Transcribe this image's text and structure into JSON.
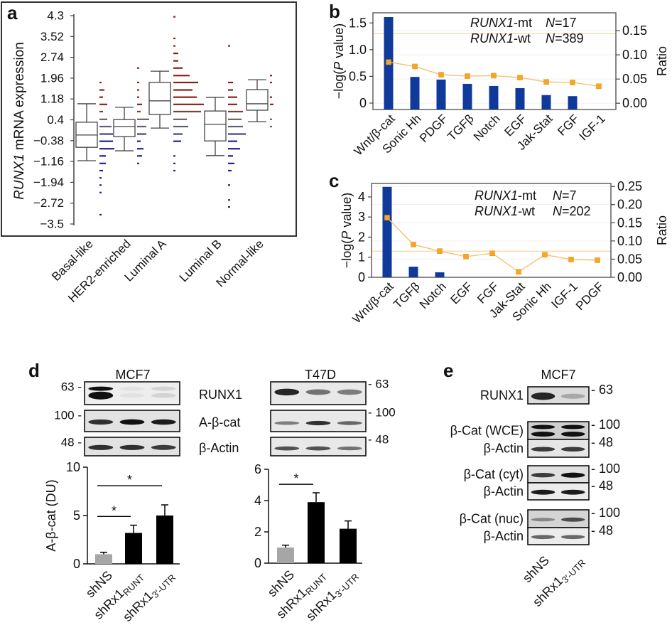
{
  "panel_labels": {
    "a": "a",
    "b": "b",
    "c": "c",
    "d": "d",
    "e": "e"
  },
  "chart_data": [
    {
      "panel": "a",
      "type": "box",
      "ylabel": [
        {
          "t": "RUNX1",
          "s": "i"
        },
        {
          "t": " mRNA expression"
        }
      ],
      "ylim": [
        -3.5,
        4.3
      ],
      "yticks": [
        {
          "v": 4.3,
          "label": "4.3"
        },
        {
          "v": 3.52,
          "label": "3.52"
        },
        {
          "v": 2.74,
          "label": "2.74"
        },
        {
          "v": 1.96,
          "label": "1.96"
        },
        {
          "v": 1.18,
          "label": "1.18"
        },
        {
          "v": 0.4,
          "label": "0.4"
        },
        {
          "v": -0.38,
          "label": "−0.38"
        },
        {
          "v": -1.16,
          "label": "−1.16"
        },
        {
          "v": -1.94,
          "label": "−1.94"
        },
        {
          "v": -2.72,
          "label": "−2.72"
        },
        {
          "v": -3.5,
          "label": "−3.5"
        }
      ],
      "categories": [
        "Basal-like",
        "HER2-enriched",
        "Luminal A",
        "Luminal B",
        "Normal-like"
      ],
      "boxes": [
        {
          "min": -1.13,
          "q1": -0.63,
          "median": -0.17,
          "q3": 0.31,
          "max": 1.0
        },
        {
          "min": -0.76,
          "q1": -0.23,
          "median": 0.15,
          "q3": 0.41,
          "max": 0.87
        },
        {
          "min": 0.09,
          "q1": 0.6,
          "median": 1.11,
          "q3": 1.8,
          "max": 2.22
        },
        {
          "min": -0.94,
          "q1": -0.39,
          "median": 0.23,
          "q3": 0.73,
          "max": 1.24
        },
        {
          "min": 0.33,
          "q1": 0.76,
          "median": 1.0,
          "q3": 1.53,
          "max": 1.9
        }
      ],
      "dot_strips": [
        [
          [
            1.8,
            1
          ],
          [
            1.52,
            3
          ],
          [
            1.25,
            2
          ],
          [
            0.98,
            5
          ],
          [
            0.71,
            2
          ],
          [
            0.42,
            5
          ],
          [
            0.15,
            8
          ],
          [
            -0.13,
            9
          ],
          [
            -0.4,
            9
          ],
          [
            -0.68,
            10
          ],
          [
            -0.95,
            4
          ],
          [
            -1.23,
            4
          ],
          [
            -1.5,
            2
          ],
          [
            -1.77,
            1
          ],
          [
            -2.04,
            1
          ],
          [
            -2.32,
            1
          ],
          [
            -3.15,
            1
          ]
        ],
        [
          [
            2.34,
            1
          ],
          [
            1.8,
            1
          ],
          [
            1.52,
            1
          ],
          [
            1.25,
            1
          ],
          [
            0.98,
            3
          ],
          [
            0.71,
            2
          ],
          [
            0.42,
            8
          ],
          [
            0.15,
            6
          ],
          [
            -0.13,
            6
          ],
          [
            -0.4,
            2
          ],
          [
            -0.68,
            4
          ],
          [
            -0.95,
            3
          ],
          [
            -1.23,
            1
          ]
        ],
        [
          [
            4.26,
            1
          ],
          [
            3.45,
            1
          ],
          [
            3.17,
            1
          ],
          [
            2.89,
            3
          ],
          [
            2.61,
            3
          ],
          [
            2.34,
            6
          ],
          [
            2.06,
            11
          ],
          [
            1.8,
            17
          ],
          [
            1.52,
            13
          ],
          [
            1.25,
            16
          ],
          [
            0.98,
            21
          ],
          [
            0.71,
            19
          ],
          [
            0.42,
            9
          ],
          [
            0.15,
            10
          ],
          [
            -0.13,
            6
          ],
          [
            -0.4,
            5
          ],
          [
            -0.95,
            1
          ],
          [
            -1.23,
            1
          ],
          [
            -1.5,
            1
          ]
        ],
        [
          [
            3.17,
            1
          ],
          [
            1.8,
            3
          ],
          [
            1.52,
            3
          ],
          [
            1.25,
            6
          ],
          [
            0.98,
            6
          ],
          [
            0.71,
            10
          ],
          [
            0.42,
            9
          ],
          [
            0.15,
            10
          ],
          [
            -0.13,
            12
          ],
          [
            -0.4,
            6
          ],
          [
            -0.68,
            8
          ],
          [
            -0.95,
            3
          ],
          [
            -1.23,
            4
          ],
          [
            -1.5,
            2
          ],
          [
            -2.04,
            1
          ],
          [
            -2.6,
            1
          ],
          [
            -2.86,
            1
          ]
        ],
        [
          [
            2.06,
            1
          ],
          [
            1.8,
            1
          ],
          [
            1.25,
            1
          ],
          [
            0.98,
            2
          ],
          [
            0.42,
            1
          ],
          [
            0.15,
            1
          ]
        ]
      ],
      "colors": {
        "high": "#8e1b1b",
        "mid": "#6d6d6d",
        "low": "#23238e"
      }
    },
    {
      "panel": "b",
      "type": "bar+line",
      "categories": [
        "Wnt/β-cat",
        "Sonic Hh",
        "PDGF",
        "TGFβ",
        "Notch",
        "EGF",
        "Jak-Stat",
        "FGF",
        "IGF-1"
      ],
      "bar_values": [
        1.61,
        0.49,
        0.44,
        0.36,
        0.32,
        0.28,
        0.15,
        0.13,
        0
      ],
      "line_values": [
        0.085,
        0.076,
        0.059,
        0.056,
        0.057,
        0.053,
        0.044,
        0.043,
        0.035
      ],
      "threshold": 1.3,
      "ylabel_left": [
        {
          "t": "−log("
        },
        {
          "t": "P",
          "s": "i"
        },
        {
          "t": " value)"
        }
      ],
      "ylabel_right": "Ratio",
      "ylim_left": [
        -0.12,
        1.69
      ],
      "ylim_right": [
        -0.013,
        0.187
      ],
      "yticks_left": [
        {
          "v": 0,
          "label": "0"
        },
        {
          "v": 0.5,
          "label": "0.5"
        },
        {
          "v": 1.0,
          "label": "1.0"
        },
        {
          "v": 1.5,
          "label": "1.5"
        }
      ],
      "yticks_right": [
        {
          "v": 0,
          "label": "0.00"
        },
        {
          "v": 0.05,
          "label": "0.05"
        },
        {
          "v": 0.1,
          "label": "0.10"
        },
        {
          "v": 0.15,
          "label": "0.15"
        }
      ],
      "annotations": [
        {
          "group": [
            {
              "t": "RUNX1",
              "s": "i"
            },
            {
              "t": "-mt"
            }
          ],
          "n": [
            {
              "t": "N",
              "s": "i"
            },
            {
              "t": "=17"
            }
          ]
        },
        {
          "group": [
            {
              "t": "RUNX1",
              "s": "i"
            },
            {
              "t": "-wt"
            }
          ],
          "n": [
            {
              "t": "N",
              "s": "i"
            },
            {
              "t": "=389"
            }
          ]
        }
      ],
      "colors": {
        "bar": "#0f3a9c",
        "line": "#f2c27a",
        "marker": "#f5a623",
        "threshold": "#efd9a6"
      }
    },
    {
      "panel": "c",
      "type": "bar+line",
      "categories": [
        "Wnt/β-cat",
        "TGFβ",
        "Notch",
        "EGF",
        "FGF",
        "Jak-Stat",
        "Sonic Hh",
        "IGF-1",
        "PDGF"
      ],
      "bar_values": [
        4.5,
        0.53,
        0.25,
        0,
        0,
        0,
        0,
        0,
        0
      ],
      "line_values": [
        0.164,
        0.09,
        0.072,
        0.057,
        0.066,
        0.015,
        0.062,
        0.049,
        0.047
      ],
      "threshold": 1.3,
      "ylabel_left": [
        {
          "t": "−log("
        },
        {
          "t": "P",
          "s": "i"
        },
        {
          "t": " value)"
        }
      ],
      "ylabel_right": "Ratio",
      "ylim_left": [
        0,
        4.67
      ],
      "ylim_right": [
        0,
        0.258
      ],
      "yticks_left": [
        {
          "v": 0,
          "label": "0"
        },
        {
          "v": 1,
          "label": "1"
        },
        {
          "v": 2,
          "label": "2"
        },
        {
          "v": 3,
          "label": "3"
        },
        {
          "v": 4,
          "label": "4"
        }
      ],
      "yticks_right": [
        {
          "v": 0,
          "label": "0.00"
        },
        {
          "v": 0.05,
          "label": "0.05"
        },
        {
          "v": 0.1,
          "label": "0.10"
        },
        {
          "v": 0.15,
          "label": "0.15"
        },
        {
          "v": 0.2,
          "label": "0.20"
        },
        {
          "v": 0.25,
          "label": "0.25"
        }
      ],
      "annotations": [
        {
          "group": [
            {
              "t": "RUNX1",
              "s": "i"
            },
            {
              "t": "-mt"
            }
          ],
          "n": [
            {
              "t": "N",
              "s": "i"
            },
            {
              "t": "=7"
            }
          ]
        },
        {
          "group": [
            {
              "t": "RUNX1",
              "s": "i"
            },
            {
              "t": "-wt"
            }
          ],
          "n": [
            {
              "t": "N",
              "s": "i"
            },
            {
              "t": "=202"
            }
          ]
        }
      ],
      "colors": {
        "bar": "#0f3a9c",
        "line": "#f2c27a",
        "marker": "#f5a623",
        "threshold": "#efd9a6"
      }
    },
    {
      "panel": "d-MCF7",
      "type": "bar",
      "categories": [
        [
          {
            "t": "shNS"
          }
        ],
        [
          {
            "t": "shRx1"
          },
          {
            "t": "RUNT",
            "s": "sub"
          }
        ],
        [
          {
            "t": "shRx1"
          },
          {
            "t": "3′-UTR",
            "s": "sub"
          }
        ]
      ],
      "values": [
        1.0,
        3.2,
        5.0
      ],
      "errors": [
        0.2,
        0.8,
        1.1
      ],
      "bar_colors": [
        "#a6a6a6",
        "#000000",
        "#000000"
      ],
      "ylabel": "A-β-cat (DU)",
      "ylim": [
        0,
        10
      ],
      "yticks": [
        {
          "v": 0,
          "label": "0"
        },
        {
          "v": 5,
          "label": "5"
        },
        {
          "v": 10,
          "label": "10"
        }
      ],
      "significance": [
        {
          "from": 0,
          "to": 1,
          "label": "*"
        },
        {
          "from": 0,
          "to": 2,
          "label": "*"
        }
      ]
    },
    {
      "panel": "d-T47D",
      "type": "bar",
      "categories": [
        [
          {
            "t": "shNS"
          }
        ],
        [
          {
            "t": "shRx1"
          },
          {
            "t": "RUNT",
            "s": "sub"
          }
        ],
        [
          {
            "t": "shRx1"
          },
          {
            "t": "3′-UTR",
            "s": "sub"
          }
        ]
      ],
      "values": [
        1.0,
        3.9,
        2.2
      ],
      "errors": [
        0.15,
        0.6,
        0.5
      ],
      "bar_colors": [
        "#a6a6a6",
        "#000000",
        "#000000"
      ],
      "ylim": [
        0,
        6
      ],
      "yticks": [
        {
          "v": 0,
          "label": "0"
        },
        {
          "v": 2,
          "label": "2"
        },
        {
          "v": 4,
          "label": "4"
        },
        {
          "v": 6,
          "label": "6"
        }
      ],
      "significance": [
        {
          "from": 0,
          "to": 1,
          "label": "*"
        }
      ]
    }
  ],
  "blots": {
    "d": {
      "cell_lines": [
        "MCF7",
        "T47D"
      ],
      "proteins": [
        "RUNX1",
        "A-β-cat",
        "β-Actin"
      ],
      "mw_left": [
        "63 -",
        "100 -",
        "48 -"
      ],
      "mw_right": [
        "- 63",
        "- 100",
        "- 48"
      ]
    },
    "e": {
      "title": "MCF7",
      "rows": [
        {
          "label": "RUNX1",
          "mw": "- 63"
        },
        {
          "label": "β-Cat (WCE)",
          "mw": "- 100"
        },
        {
          "label": "β-Actin",
          "mw": "- 48"
        },
        {
          "label": "β-Cat (cyt)",
          "mw": "- 100"
        },
        {
          "label": "β-Actin",
          "mw": "- 48"
        },
        {
          "label": "β-Cat (nuc)",
          "mw": "- 100"
        },
        {
          "label": "β-Actin",
          "mw": "- 48"
        }
      ],
      "lanes": [
        [
          {
            "t": "shNS"
          }
        ],
        [
          {
            "t": "shRx1"
          },
          {
            "t": "3′-UTR",
            "s": "sub"
          }
        ]
      ]
    }
  }
}
